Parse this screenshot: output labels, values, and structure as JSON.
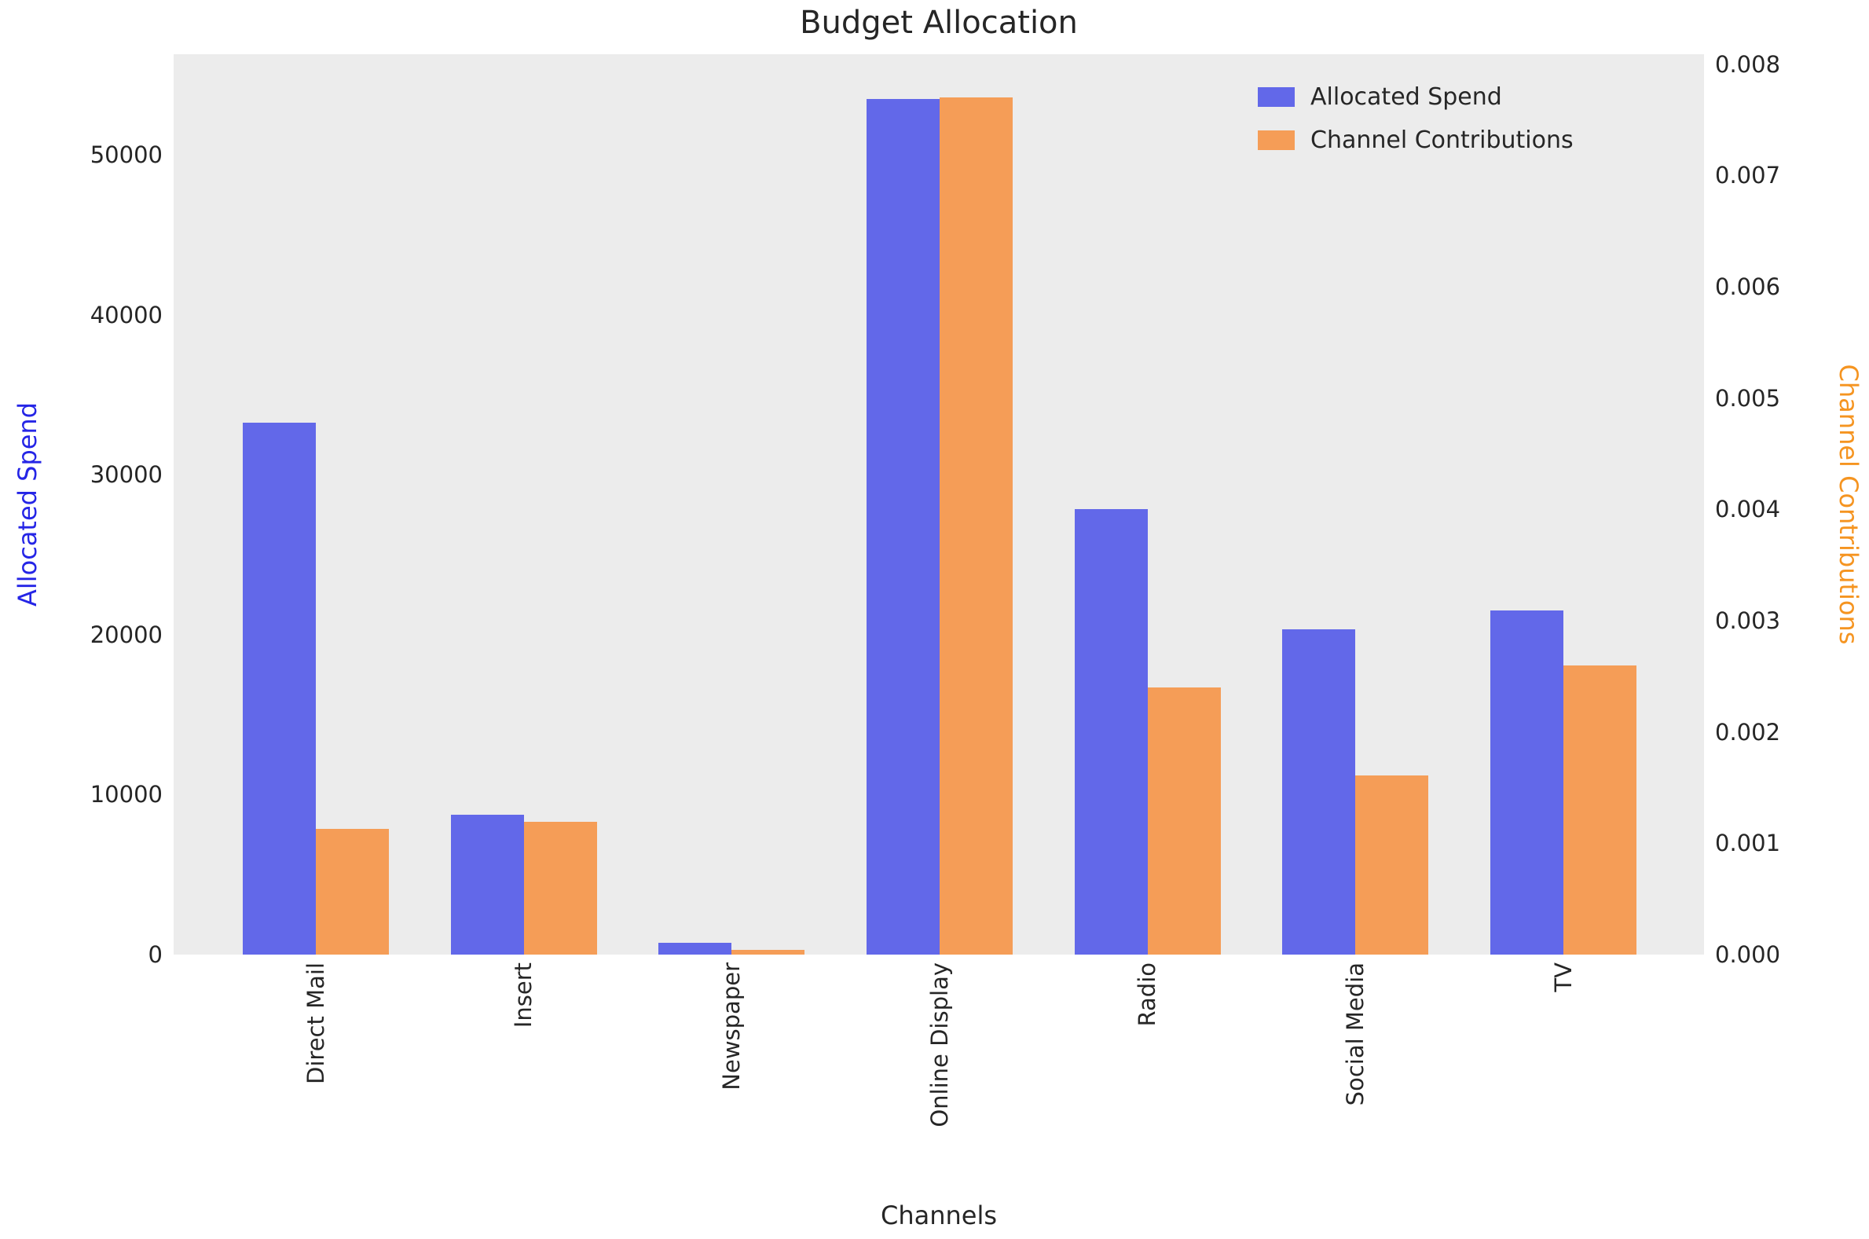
{
  "title": "Budget Allocation",
  "axes": {
    "x": {
      "label": "Channels"
    },
    "y_left": {
      "label": "Allocated Spend",
      "label_color": "#2525e6",
      "tick_labels": [
        "0",
        "10000",
        "20000",
        "30000",
        "40000",
        "50000"
      ],
      "tick_values": [
        0,
        10000,
        20000,
        30000,
        40000,
        50000
      ]
    },
    "y_right": {
      "label": "Channel Contributions",
      "label_color": "#f59420",
      "tick_labels": [
        "0.000",
        "0.001",
        "0.002",
        "0.003",
        "0.004",
        "0.005",
        "0.006",
        "0.007",
        "0.008"
      ],
      "tick_values": [
        0,
        0.001,
        0.002,
        0.003,
        0.004,
        0.005,
        0.006,
        0.007,
        0.008
      ]
    }
  },
  "legend": {
    "items": [
      {
        "label": "Allocated Spend",
        "color": "#6268e9"
      },
      {
        "label": "Channel Contributions",
        "color": "#f59d57"
      }
    ]
  },
  "chart_data": {
    "type": "bar",
    "title": "Budget Allocation",
    "xlabel": "Channels",
    "ylabel_left": "Allocated Spend",
    "ylabel_right": "Channel Contributions",
    "categories": [
      "Direct Mail",
      "Insert",
      "Newspaper",
      "Online Display",
      "Radio",
      "Social Media",
      "TV"
    ],
    "series": [
      {
        "name": "Allocated Spend",
        "axis": "left",
        "color": "#6268e9",
        "values": [
          33250,
          8750,
          750,
          53500,
          27850,
          20350,
          21500
        ]
      },
      {
        "name": "Channel Contributions",
        "axis": "right",
        "color": "#f59d57",
        "values": [
          0.00113,
          0.00119,
          4e-05,
          0.0077,
          0.0024,
          0.00161,
          0.0026
        ]
      }
    ],
    "ylim_left": [
      0,
      56300
    ],
    "ylim_right": [
      0,
      0.00809
    ],
    "grid": false,
    "legend_position": "upper right",
    "plot_bg": "#ececec",
    "bar_group_layout": "grouped-pair"
  }
}
